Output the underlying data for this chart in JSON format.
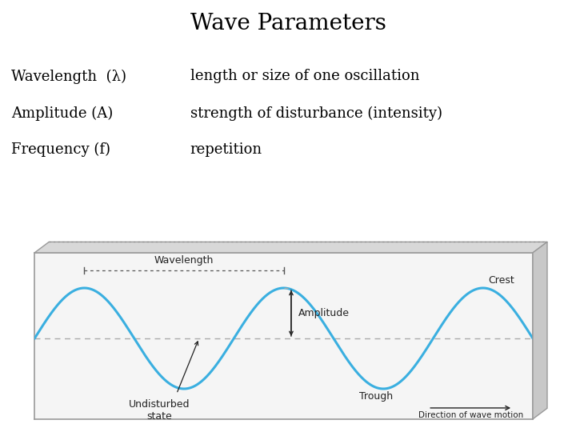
{
  "title": "Wave Parameters",
  "title_fontsize": 20,
  "bg_color": "#ffffff",
  "text_color": "#000000",
  "labels_left": [
    "Wavelength  (λ)",
    "Amplitude (A)",
    "Frequency (f)"
  ],
  "labels_right": [
    "length or size of one oscillation",
    "strength of disturbance (intensity)",
    "repetition"
  ],
  "label_fontsize": 13,
  "wave_color": "#3aafe0",
  "wave_linewidth": 2.2,
  "dash_color": "#aaaaaa",
  "annot_color": "#222222",
  "panel_face": "#f5f5f5",
  "panel_top_face": "#d8d8d8",
  "panel_right_face": "#c8c8c8",
  "panel_border": "#999999",
  "wavelength_label": "Wavelength",
  "amplitude_label": "Amplitude",
  "crest_label": "Crest",
  "trough_label": "Trough",
  "undisturbed_label": "Undisturbed\nstate",
  "direction_label": "Direction of wave motion"
}
